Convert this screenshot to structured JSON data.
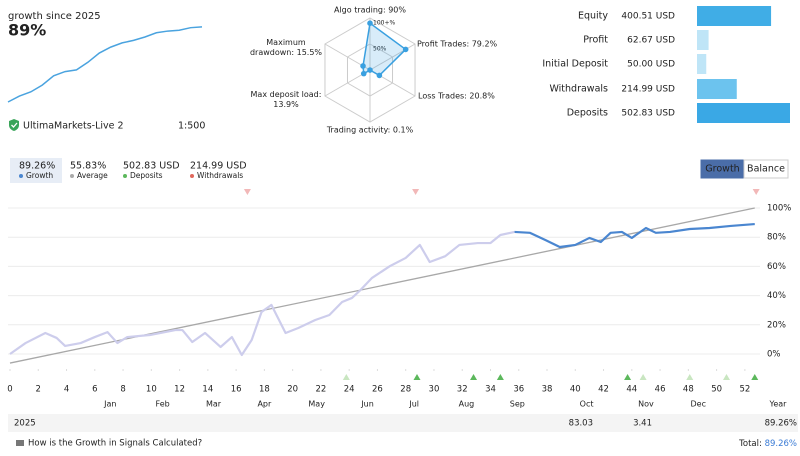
{
  "header": {
    "title": "growth since 2025",
    "growth": "89%",
    "account": "UltimaMarkets-Live 2",
    "leverage": "1:500"
  },
  "stats": [
    {
      "value": "89.26%",
      "label": "Growth",
      "color": "#4a86d0"
    },
    {
      "value": "55.83%",
      "label": "Average",
      "color": "#aaaaaa"
    },
    {
      "value": "502.83 USD",
      "label": "Deposits",
      "color": "#5cb85c"
    },
    {
      "value": "214.99 USD",
      "label": "Withdrawals",
      "color": "#e0685c"
    }
  ],
  "buttons": [
    "Growth",
    "Balance"
  ],
  "table": {
    "rows": [
      [
        "2025",
        "83.03",
        "3.41",
        "89.26%"
      ]
    ]
  },
  "footer": {
    "link": "How is the Growth in Signals Calculated?",
    "total_label": "Total:",
    "total_value": "89.26%"
  },
  "chart_data": [
    {
      "type": "line",
      "x": [
        0,
        1,
        2,
        3,
        4,
        5,
        6,
        7,
        8,
        9,
        10,
        11,
        12,
        13,
        14,
        15,
        16,
        17
      ],
      "values": [
        0,
        7,
        12,
        20,
        31,
        36,
        38,
        47,
        58,
        65,
        70,
        73,
        77,
        82,
        84,
        85,
        88,
        89
      ],
      "xlim": [
        0,
        17
      ],
      "ylim": [
        0,
        90
      ],
      "color": "#4aa3df"
    },
    {
      "type": "radar",
      "categories": [
        "Algo trading: 90%",
        "Profit Trades: 79.2%",
        "Loss Trades: 20.8%",
        "Trading activity: 0.1%",
        "Max deposit load: 13.9%",
        "Maximum drawdown: 15.5%"
      ],
      "values": [
        90,
        79.2,
        20.8,
        0.1,
        13.9,
        15.5
      ],
      "rlim": [
        0,
        100
      ],
      "rticks": [
        {
          "value": 50,
          "label": "50%"
        },
        {
          "value": 100,
          "label": "100+%"
        }
      ],
      "color": "#3aa0e0"
    },
    {
      "type": "hbar",
      "categories": [
        "Equity",
        "Profit",
        "Initial Deposit",
        "Withdrawals",
        "Deposits"
      ],
      "values": [
        400.51,
        62.67,
        50.0,
        214.99,
        502.83
      ],
      "value_labels": [
        "400.51 USD",
        "62.67 USD",
        "50.00 USD",
        "214.99 USD",
        "502.83 USD"
      ],
      "colors": [
        "#40ade6",
        "#bfe5f7",
        "#bfe5f7",
        "#6cc3ee",
        "#3aa8e5"
      ],
      "xlim": [
        0,
        502.83
      ]
    },
    {
      "type": "line",
      "series": [
        {
          "color": "#cdcdec",
          "x": [
            0,
            1.1,
            2.5,
            3.3,
            3.9,
            5,
            6,
            6.9,
            7.6,
            8.3,
            9.9,
            11.7,
            12.2,
            12.9,
            13.8,
            14.9,
            15.7,
            16.4,
            17.1,
            17.8,
            18.5,
            19.5,
            20.4,
            21.6,
            22.6,
            23.5,
            24.2,
            24.8,
            25.6,
            26.9,
            28,
            29,
            29.7,
            30.8,
            31.8,
            33.1,
            34,
            34.7,
            35.7
          ],
          "values": [
            0,
            7.5,
            14.4,
            11,
            5.5,
            7.5,
            11.6,
            15,
            7.5,
            11.6,
            13,
            16.4,
            16.4,
            8.2,
            14.4,
            4.8,
            11.6,
            -0.7,
            9.6,
            28.8,
            33.6,
            14.4,
            17.8,
            23.3,
            26.7,
            35.6,
            38.4,
            43.8,
            52,
            60.3,
            65.8,
            74.7,
            63,
            67,
            74.7,
            76,
            76,
            81.5,
            83.6
          ]
        },
        {
          "color": "#4a86d0",
          "x": [
            35.7,
            36.8,
            37.9,
            38.9,
            40,
            41,
            41.8,
            42.5,
            43.3,
            44,
            45,
            45.7,
            46.7,
            48.1,
            49.5,
            51,
            52.7
          ],
          "values": [
            83.6,
            83,
            78,
            73.3,
            74.7,
            79.5,
            76.7,
            83,
            83.6,
            79.5,
            86.3,
            83,
            83.6,
            85.6,
            86.3,
            87.7,
            89
          ]
        },
        {
          "color": "#a8a8a8",
          "x": [
            0,
            52.7
          ],
          "values": [
            -6.2,
            100
          ]
        }
      ],
      "xlim": [
        0,
        53
      ],
      "ylim": [
        -10,
        110
      ],
      "xticks": [
        0,
        2,
        4,
        6,
        8,
        10,
        12,
        14,
        16,
        18,
        20,
        22,
        24,
        26,
        28,
        30,
        32,
        34,
        36,
        38,
        40,
        42,
        44,
        46,
        48,
        50,
        52
      ],
      "yticks": [
        {
          "value": 0,
          "label": "0%"
        },
        {
          "value": 20,
          "label": "20%"
        },
        {
          "value": 40,
          "label": "40%"
        },
        {
          "value": 60,
          "label": "60%"
        },
        {
          "value": 80,
          "label": "80%"
        },
        {
          "value": 100,
          "label": "100%"
        }
      ],
      "x2ticks": [
        {
          "value": 7.1,
          "label": "Jan"
        },
        {
          "value": 10.8,
          "label": "Feb"
        },
        {
          "value": 14.4,
          "label": "Mar"
        },
        {
          "value": 18,
          "label": "Apr"
        },
        {
          "value": 21.7,
          "label": "May"
        },
        {
          "value": 25.3,
          "label": "Jun"
        },
        {
          "value": 28.6,
          "label": "Jul"
        },
        {
          "value": 32.3,
          "label": "Aug"
        },
        {
          "value": 35.9,
          "label": "Sep"
        },
        {
          "value": 40.8,
          "label": "Oct"
        },
        {
          "value": 45,
          "label": "Nov"
        },
        {
          "value": 48.7,
          "label": "Dec"
        }
      ],
      "xlabel": "Year",
      "grid": true,
      "withdrawal_markers": {
        "x": [
          16.8,
          28.7,
          52.8
        ],
        "color": "#f2b8b8"
      },
      "deposit_markers": [
        {
          "x": [
            28.8,
            32.8,
            34.7,
            43.7,
            52.7
          ],
          "color": "#5cb85c"
        },
        {
          "x": [
            23.8,
            44.8,
            48.1,
            50.7
          ],
          "color": "#c9e6c1"
        }
      ]
    }
  ]
}
